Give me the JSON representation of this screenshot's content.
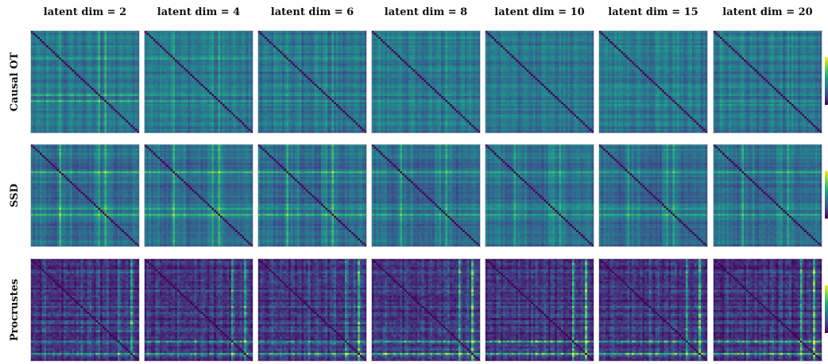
{
  "chart_data": {
    "type": "heatmap",
    "colormap": "viridis",
    "grid_size": 50,
    "columns": [
      "latent dim = 2",
      "latent dim = 4",
      "latent dim = 6",
      "latent dim = 8",
      "latent dim = 10",
      "latent dim = 15",
      "latent dim = 20"
    ],
    "rows": [
      {
        "label": "Causal OT",
        "style": "smooth",
        "hot_indices": [
          13,
          31,
          34
        ],
        "hot_strength": [
          0.55,
          0.45,
          0.35,
          0.3,
          0.28,
          0.27,
          0.27
        ]
      },
      {
        "label": "SSD",
        "style": "smooth",
        "hot_indices": [
          13,
          31,
          34
        ],
        "hot_strength": [
          0.55,
          0.5,
          0.45,
          0.42,
          0.4,
          0.38,
          0.38
        ]
      },
      {
        "label": "Procrustes",
        "style": "noisy",
        "hot_indices": [
          40,
          46
        ],
        "hot_strength": [
          0.45,
          0.5,
          0.55,
          0.6,
          0.62,
          0.62,
          0.62
        ]
      }
    ],
    "diagonal": "zero",
    "colorbar": "per-row"
  }
}
